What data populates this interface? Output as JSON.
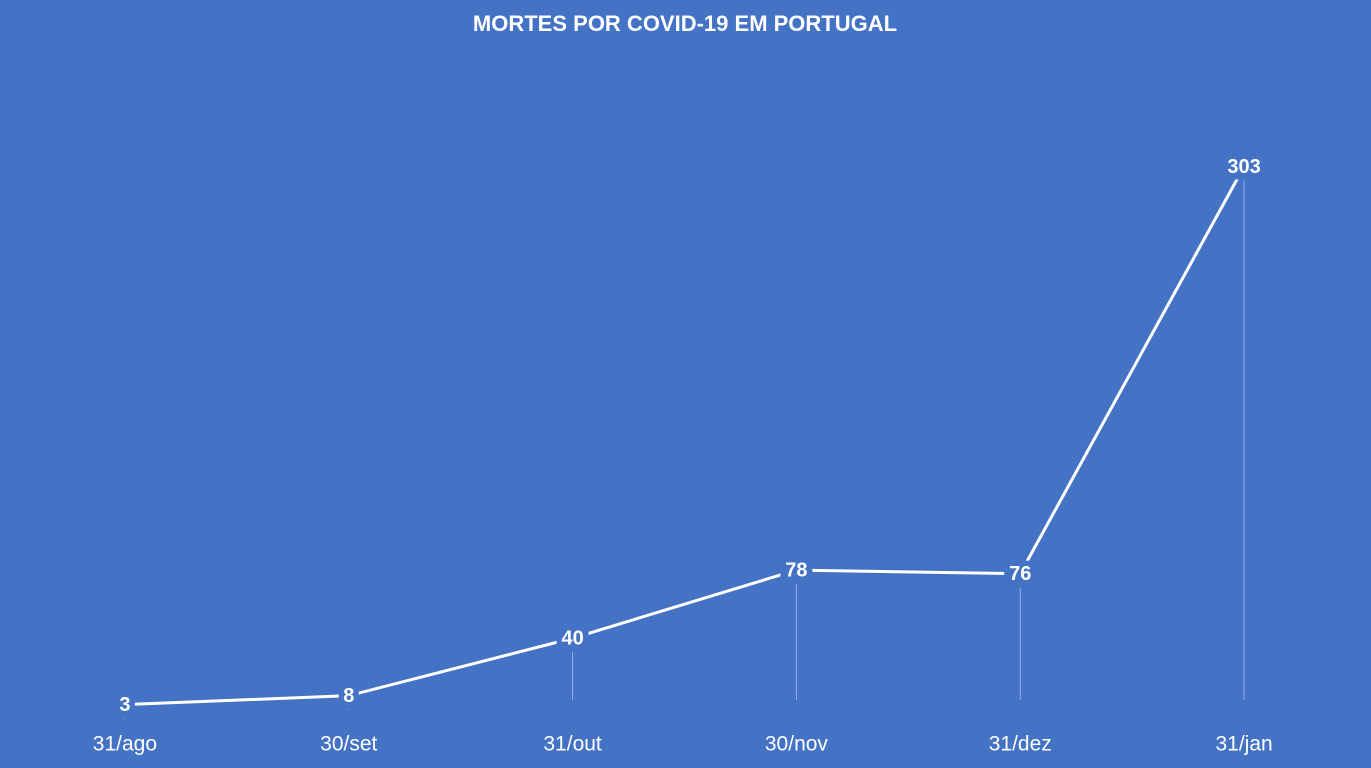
{
  "chart_data": {
    "type": "line",
    "title": "MORTES POR COVID-19 EM PORTUGAL",
    "categories": [
      "31/ago",
      "30/set",
      "31/out",
      "30/nov",
      "31/dez",
      "31/jan"
    ],
    "series": [
      {
        "name": "Mortes",
        "color": "#ffffff",
        "values": [
          3,
          8,
          40,
          78,
          76,
          303
        ]
      }
    ],
    "ylim": [
      0,
      320
    ],
    "drop_lines": true
  }
}
